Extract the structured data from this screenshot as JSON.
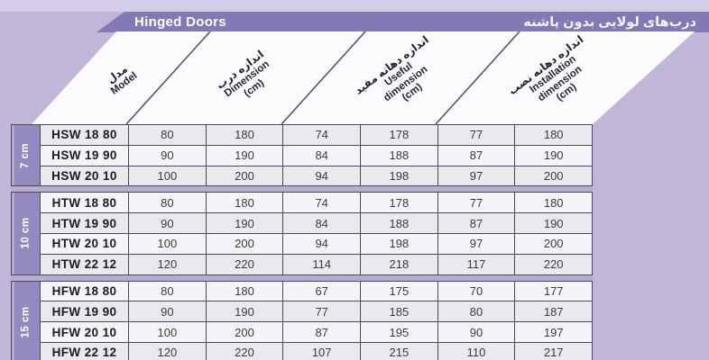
{
  "title_bar": {
    "en": "Hinged Doors",
    "fa": "درب‌های لولایی بدون پاشنه"
  },
  "columns": [
    {
      "fa": "مدل",
      "en_lines": [
        "Model"
      ]
    },
    {
      "fa": "اندازه درب",
      "en_lines": [
        "Dimension",
        "(cm)"
      ]
    },
    {
      "fa": "اندازه دهانه مفید",
      "en_lines": [
        "Useful",
        "dimension",
        "(cm)"
      ]
    },
    {
      "fa": "اندازه دهانه نصب",
      "en_lines": [
        "Installation",
        "dimension",
        "(cm)"
      ]
    }
  ],
  "groups": [
    {
      "label": "7 cm",
      "rows": [
        {
          "model": "HSW 18 80",
          "values": [
            "80",
            "180",
            "74",
            "178",
            "77",
            "180"
          ]
        },
        {
          "model": "HSW 19 90",
          "values": [
            "90",
            "190",
            "84",
            "188",
            "87",
            "190"
          ]
        },
        {
          "model": "HSW 20 10",
          "values": [
            "100",
            "200",
            "94",
            "198",
            "97",
            "200"
          ]
        }
      ]
    },
    {
      "label": "10 cm",
      "rows": [
        {
          "model": "HTW 18 80",
          "values": [
            "80",
            "180",
            "74",
            "178",
            "77",
            "180"
          ]
        },
        {
          "model": "HTW 19 90",
          "values": [
            "90",
            "190",
            "84",
            "188",
            "87",
            "190"
          ]
        },
        {
          "model": "HTW 20 10",
          "values": [
            "100",
            "200",
            "94",
            "198",
            "97",
            "200"
          ]
        },
        {
          "model": "HTW 22 12",
          "values": [
            "120",
            "220",
            "114",
            "218",
            "117",
            "220"
          ]
        }
      ]
    },
    {
      "label": "15 cm",
      "rows": [
        {
          "model": "HFW 18 80",
          "values": [
            "80",
            "180",
            "67",
            "175",
            "70",
            "177"
          ]
        },
        {
          "model": "HFW 19 90",
          "values": [
            "90",
            "190",
            "77",
            "185",
            "80",
            "187"
          ]
        },
        {
          "model": "HFW 20 10",
          "values": [
            "100",
            "200",
            "87",
            "195",
            "90",
            "197"
          ]
        },
        {
          "model": "HFW 22 12",
          "values": [
            "120",
            "220",
            "107",
            "215",
            "110",
            "217"
          ]
        }
      ]
    }
  ],
  "colors": {
    "page_background": "#c1b6d8",
    "top_strip": "#d4cde9",
    "title_bar": "#8478b5",
    "group_band": "#948abf",
    "separator": "#b6add1",
    "cell_dark": "#e9e9ee",
    "cell_light": "#f5f5f8",
    "grid_border": "#4b4954"
  }
}
